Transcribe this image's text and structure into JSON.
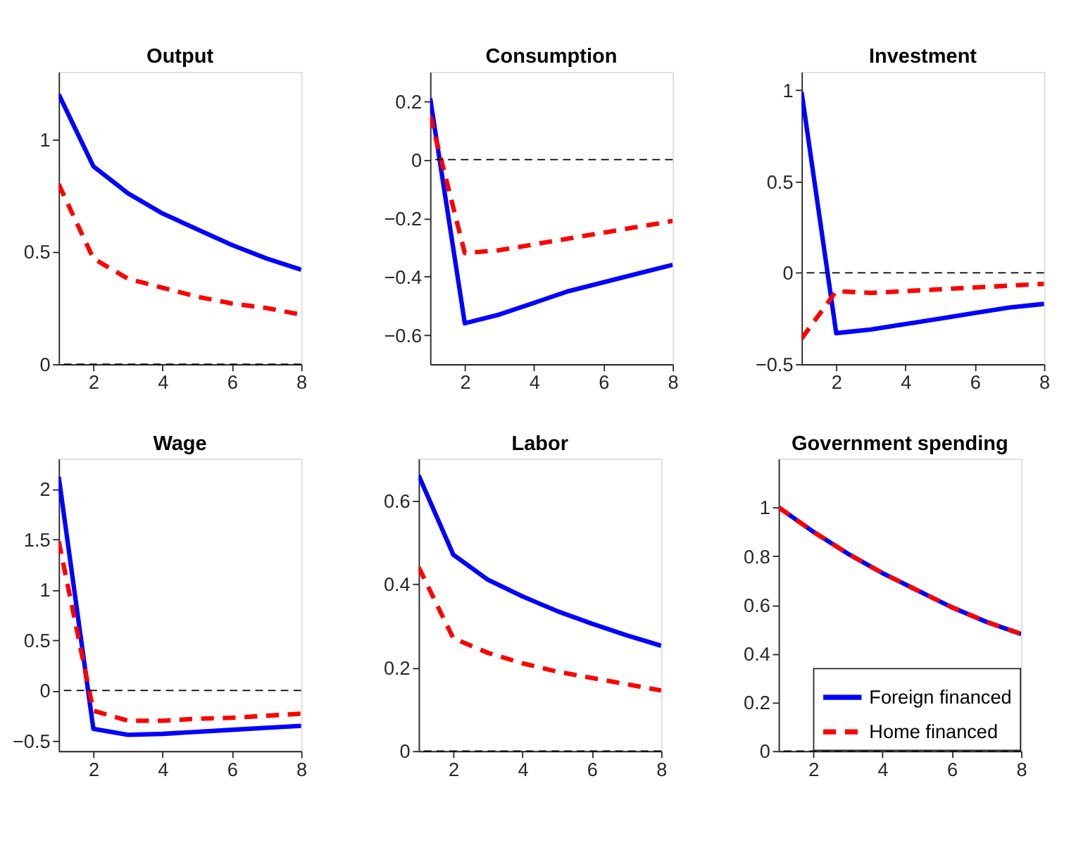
{
  "chart_data": [
    {
      "type": "line",
      "title": "Output",
      "x": [
        1,
        2,
        3,
        4,
        5,
        6,
        7,
        8
      ],
      "xlim": [
        1,
        8
      ],
      "xticks": [
        2,
        4,
        6,
        8
      ],
      "ylim": [
        0,
        1.3
      ],
      "yticks": [
        0,
        0.5,
        1
      ],
      "grid": false,
      "ref_lines": [
        {
          "axis": "y",
          "value": 0,
          "color": "#000000",
          "line_style": "dashed"
        }
      ],
      "series": [
        {
          "color": "#0000ff",
          "line_style": "solid",
          "values": [
            1.2,
            0.88,
            0.76,
            0.67,
            0.6,
            0.53,
            0.47,
            0.42
          ]
        },
        {
          "color": "#ff0000",
          "line_style": "dashed",
          "values": [
            0.8,
            0.47,
            0.38,
            0.34,
            0.3,
            0.27,
            0.25,
            0.22
          ]
        }
      ]
    },
    {
      "type": "line",
      "title": "Consumption",
      "x": [
        1,
        2,
        3,
        4,
        5,
        6,
        7,
        8
      ],
      "xlim": [
        1,
        8
      ],
      "xticks": [
        2,
        4,
        6,
        8
      ],
      "ylim": [
        -0.7,
        0.3
      ],
      "yticks": [
        -0.6,
        -0.4,
        -0.2,
        0,
        0.2
      ],
      "grid": false,
      "ref_lines": [
        {
          "axis": "y",
          "value": 0,
          "color": "#000000",
          "line_style": "dashed"
        }
      ],
      "series": [
        {
          "color": "#0000ff",
          "line_style": "solid",
          "values": [
            0.21,
            -0.56,
            -0.53,
            -0.49,
            -0.45,
            -0.42,
            -0.39,
            -0.36
          ]
        },
        {
          "color": "#ff0000",
          "line_style": "dashed",
          "values": [
            0.15,
            -0.32,
            -0.31,
            -0.29,
            -0.27,
            -0.25,
            -0.23,
            -0.21
          ]
        }
      ]
    },
    {
      "type": "line",
      "title": "Investment",
      "x": [
        1,
        2,
        3,
        4,
        5,
        6,
        7,
        8
      ],
      "xlim": [
        1,
        8
      ],
      "xticks": [
        2,
        4,
        6,
        8
      ],
      "ylim": [
        -0.5,
        1.1
      ],
      "yticks": [
        -0.5,
        0,
        0.5,
        1
      ],
      "grid": false,
      "ref_lines": [
        {
          "axis": "y",
          "value": 0,
          "color": "#000000",
          "line_style": "dashed"
        }
      ],
      "series": [
        {
          "color": "#0000ff",
          "line_style": "solid",
          "values": [
            0.99,
            -0.33,
            -0.31,
            -0.28,
            -0.25,
            -0.22,
            -0.19,
            -0.17
          ]
        },
        {
          "color": "#ff0000",
          "line_style": "dashed",
          "values": [
            -0.36,
            -0.1,
            -0.11,
            -0.1,
            -0.09,
            -0.08,
            -0.07,
            -0.06
          ]
        }
      ]
    },
    {
      "type": "line",
      "title": "Wage",
      "x": [
        1,
        2,
        3,
        4,
        5,
        6,
        7,
        8
      ],
      "xlim": [
        1,
        8
      ],
      "xticks": [
        2,
        4,
        6,
        8
      ],
      "ylim": [
        -0.6,
        2.3
      ],
      "yticks": [
        -0.5,
        0,
        0.5,
        1,
        1.5,
        2
      ],
      "grid": false,
      "ref_lines": [
        {
          "axis": "y",
          "value": 0,
          "color": "#000000",
          "line_style": "dashed"
        }
      ],
      "series": [
        {
          "color": "#0000ff",
          "line_style": "solid",
          "values": [
            2.12,
            -0.38,
            -0.44,
            -0.43,
            -0.41,
            -0.39,
            -0.37,
            -0.35
          ]
        },
        {
          "color": "#ff0000",
          "line_style": "dashed",
          "values": [
            1.48,
            -0.2,
            -0.3,
            -0.3,
            -0.28,
            -0.27,
            -0.25,
            -0.23
          ]
        }
      ]
    },
    {
      "type": "line",
      "title": "Labor",
      "x": [
        1,
        2,
        3,
        4,
        5,
        6,
        7,
        8
      ],
      "xlim": [
        1,
        8
      ],
      "xticks": [
        2,
        4,
        6,
        8
      ],
      "ylim": [
        0,
        0.7
      ],
      "yticks": [
        0,
        0.2,
        0.4,
        0.6
      ],
      "grid": false,
      "ref_lines": [
        {
          "axis": "y",
          "value": 0,
          "color": "#000000",
          "line_style": "dashed"
        }
      ],
      "series": [
        {
          "color": "#0000ff",
          "line_style": "solid",
          "values": [
            0.66,
            0.47,
            0.41,
            0.37,
            0.335,
            0.305,
            0.277,
            0.252
          ]
        },
        {
          "color": "#ff0000",
          "line_style": "dashed",
          "values": [
            0.44,
            0.27,
            0.235,
            0.21,
            0.19,
            0.175,
            0.16,
            0.145
          ]
        }
      ]
    },
    {
      "type": "line",
      "title": "Government spending",
      "x": [
        1,
        2,
        3,
        4,
        5,
        6,
        7,
        8
      ],
      "xlim": [
        1,
        8
      ],
      "xticks": [
        2,
        4,
        6,
        8
      ],
      "ylim": [
        0,
        1.2
      ],
      "yticks": [
        0,
        0.2,
        0.4,
        0.6,
        0.8,
        1
      ],
      "grid": false,
      "legend": "bottom right",
      "ref_lines": [
        {
          "axis": "y",
          "value": 0,
          "color": "#000000",
          "line_style": "dashed"
        }
      ],
      "series": [
        {
          "name": "Foreign financed",
          "color": "#0000ff",
          "line_style": "solid",
          "values": [
            1.0,
            0.9,
            0.81,
            0.73,
            0.66,
            0.59,
            0.53,
            0.48
          ]
        },
        {
          "name": "Home financed",
          "color": "#ff0000",
          "line_style": "dashed",
          "values": [
            1.0,
            0.9,
            0.81,
            0.73,
            0.66,
            0.59,
            0.53,
            0.48
          ]
        }
      ]
    }
  ]
}
